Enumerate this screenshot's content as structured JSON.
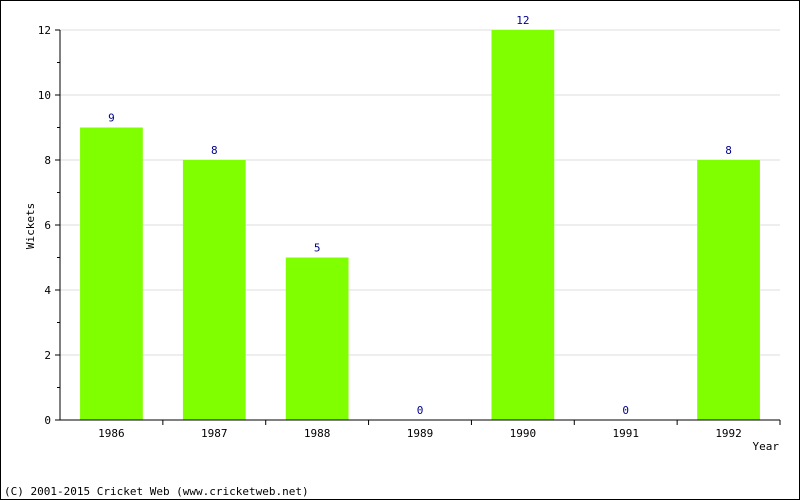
{
  "chart_data": {
    "type": "bar",
    "categories": [
      "1986",
      "1987",
      "1988",
      "1989",
      "1990",
      "1991",
      "1992"
    ],
    "values": [
      9,
      8,
      5,
      0,
      12,
      0,
      8
    ],
    "xlabel": "Year",
    "ylabel": "Wickets",
    "ylim": [
      0,
      12
    ],
    "yticks": [
      0,
      2,
      4,
      6,
      8,
      10,
      12
    ],
    "grid": true,
    "bar_color": "#80ff00",
    "label_color": "#00008b"
  },
  "footer": {
    "copyright": "(C) 2001-2015 Cricket Web (www.cricketweb.net)"
  }
}
